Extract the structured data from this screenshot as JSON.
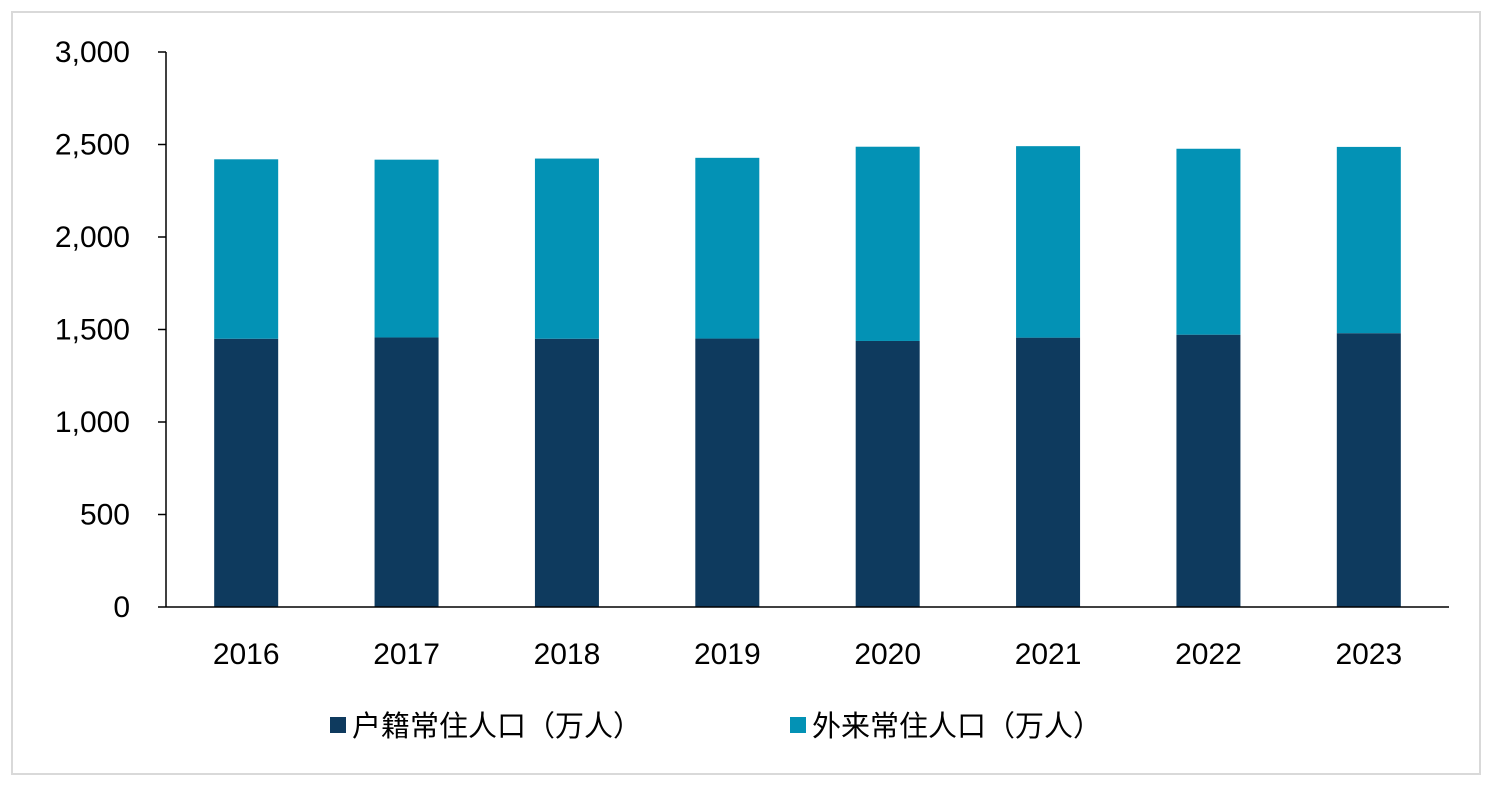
{
  "chart_data": {
    "type": "bar",
    "stacked": true,
    "title": "",
    "xlabel": "",
    "ylabel": "",
    "categories": [
      "2016",
      "2017",
      "2018",
      "2019",
      "2020",
      "2021",
      "2022",
      "2023"
    ],
    "series": [
      {
        "name": "户籍常住人口（万人）",
        "color": "#0e3a5e",
        "values": [
          1450,
          1457,
          1450,
          1451,
          1438,
          1456,
          1472,
          1480
        ]
      },
      {
        "name": "外来常住人口（万人）",
        "color": "#0392b5",
        "values": [
          970,
          961,
          974,
          977,
          1050,
          1035,
          1005,
          1007
        ]
      }
    ],
    "ylim": [
      0,
      3000
    ],
    "yticks": [
      0,
      500,
      1000,
      1500,
      2000,
      2500,
      3000
    ],
    "ytick_labels": [
      "0",
      "500",
      "1,000",
      "1,500",
      "2,000",
      "2,500",
      "3,000"
    ],
    "grid": false,
    "legend_position": "bottom"
  }
}
